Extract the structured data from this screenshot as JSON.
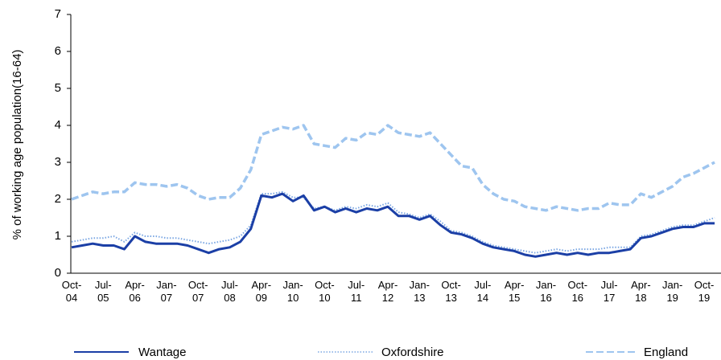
{
  "chart_data": {
    "type": "line",
    "y_label": "% of working age population(16-64)",
    "categories": [
      "Oct-04",
      null,
      null,
      "Jul-05",
      null,
      null,
      "Apr-06",
      null,
      null,
      "Jan-07",
      null,
      null,
      "Oct-07",
      null,
      null,
      "Jul-08",
      null,
      null,
      "Apr-09",
      null,
      null,
      "Jan-10",
      null,
      null,
      "Oct-10",
      null,
      null,
      "Jul-11",
      null,
      null,
      "Apr-12",
      null,
      null,
      "Jan-13",
      null,
      null,
      "Oct-13",
      null,
      null,
      "Jul-14",
      null,
      null,
      "Apr-15",
      null,
      null,
      "Jan-16",
      null,
      null,
      "Oct-16",
      null,
      null,
      "Jul-17",
      null,
      null,
      "Apr-18",
      null,
      null,
      "Jan-19",
      null,
      null,
      "Oct-19",
      null
    ],
    "series": [
      {
        "name": "Wantage",
        "color": "#1b3fa6",
        "style": "solid",
        "values": [
          0.7,
          0.75,
          0.8,
          0.75,
          0.75,
          0.65,
          1.0,
          0.85,
          0.8,
          0.8,
          0.8,
          0.75,
          0.65,
          0.55,
          0.65,
          0.7,
          0.85,
          1.2,
          2.1,
          2.05,
          2.15,
          1.95,
          2.1,
          1.7,
          1.8,
          1.65,
          1.75,
          1.65,
          1.75,
          1.7,
          1.8,
          1.55,
          1.55,
          1.45,
          1.55,
          1.3,
          1.1,
          1.05,
          0.95,
          0.8,
          0.7,
          0.65,
          0.6,
          0.5,
          0.45,
          0.5,
          0.55,
          0.5,
          0.55,
          0.5,
          0.55,
          0.55,
          0.6,
          0.65,
          0.95,
          1.0,
          1.1,
          1.2,
          1.25,
          1.25,
          1.35,
          1.35
        ]
      },
      {
        "name": "Oxfordshire",
        "color": "#7ba7e3",
        "style": "dotted",
        "values": [
          0.85,
          0.9,
          0.95,
          0.95,
          1.0,
          0.85,
          1.1,
          1.0,
          1.0,
          0.95,
          0.95,
          0.9,
          0.85,
          0.8,
          0.85,
          0.9,
          1.0,
          1.3,
          2.15,
          2.15,
          2.2,
          2.05,
          2.05,
          1.75,
          1.8,
          1.7,
          1.8,
          1.75,
          1.85,
          1.8,
          1.9,
          1.65,
          1.6,
          1.5,
          1.6,
          1.4,
          1.15,
          1.1,
          1.0,
          0.85,
          0.75,
          0.7,
          0.65,
          0.6,
          0.55,
          0.6,
          0.65,
          0.6,
          0.65,
          0.65,
          0.65,
          0.7,
          0.7,
          0.7,
          1.0,
          1.05,
          1.15,
          1.25,
          1.3,
          1.3,
          1.4,
          1.5
        ]
      },
      {
        "name": "England",
        "color": "#9ec5ef",
        "style": "dashed",
        "values": [
          2.0,
          2.1,
          2.2,
          2.15,
          2.2,
          2.2,
          2.45,
          2.4,
          2.4,
          2.35,
          2.4,
          2.3,
          2.1,
          2.0,
          2.05,
          2.05,
          2.3,
          2.8,
          3.75,
          3.85,
          3.95,
          3.9,
          4.0,
          3.5,
          3.45,
          3.4,
          3.65,
          3.6,
          3.8,
          3.75,
          4.0,
          3.8,
          3.75,
          3.7,
          3.8,
          3.5,
          3.2,
          2.9,
          2.85,
          2.4,
          2.15,
          2.0,
          1.95,
          1.8,
          1.75,
          1.7,
          1.8,
          1.75,
          1.7,
          1.75,
          1.75,
          1.9,
          1.85,
          1.85,
          2.15,
          2.05,
          2.2,
          2.35,
          2.6,
          2.7,
          2.85,
          3.0
        ]
      }
    ],
    "ylim": [
      0,
      7
    ],
    "yticks": [
      0,
      1,
      2,
      3,
      4,
      5,
      6,
      7
    ],
    "grid": false,
    "legend": "bottom"
  }
}
